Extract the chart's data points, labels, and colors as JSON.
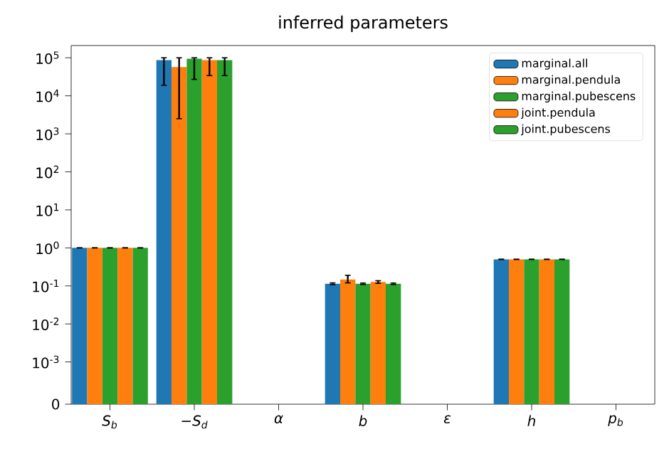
{
  "chart_data": {
    "type": "bar",
    "title": "inferred parameters",
    "categories": [
      "S$_{b}$",
      "−S$_{d}$",
      "α",
      "b",
      "ε",
      "h",
      "p$_{b}$"
    ],
    "series": [
      {
        "name": "marginal.all",
        "color": "#1f77b4",
        "values": [
          1.0,
          87000,
          0,
          0.114,
          0,
          0.5,
          0
        ],
        "errors": [
          0,
          [
            19000,
            100000
          ],
          null,
          0.006,
          null,
          0,
          null
        ]
      },
      {
        "name": "marginal.pendula",
        "color": "#ff7f0e",
        "values": [
          1.0,
          57000,
          0,
          0.147,
          0,
          0.5,
          0
        ],
        "errors": [
          0,
          [
            2500,
            100000
          ],
          null,
          [
            0.12,
            0.19
          ],
          null,
          0,
          null
        ]
      },
      {
        "name": "marginal.pubescens",
        "color": "#2ca02c",
        "values": [
          1.0,
          95000,
          0,
          0.114,
          0,
          0.5,
          0
        ],
        "errors": [
          0,
          [
            27000,
            100000
          ],
          null,
          0.005,
          null,
          0,
          null
        ]
      },
      {
        "name": "joint.pendula",
        "color": "#ff7f0e",
        "values": [
          1.0,
          87000,
          0,
          0.127,
          0,
          0.5,
          0
        ],
        "errors": [
          0,
          [
            34000,
            100000
          ],
          null,
          0.01,
          null,
          0,
          null
        ]
      },
      {
        "name": "joint.pubescens",
        "color": "#2ca02c",
        "values": [
          1.0,
          87000,
          0,
          0.114,
          0,
          0.5,
          0
        ],
        "errors": [
          0,
          [
            34000,
            100000
          ],
          null,
          0.005,
          null,
          0,
          null
        ]
      }
    ],
    "log": true,
    "ylim": [
      0,
      210000
    ],
    "yticks": [
      0,
      {
        "value": 0.001,
        "label": "10$^{-3}$"
      },
      {
        "value": 0.01,
        "label": "10$^{-2}$"
      },
      {
        "value": 0.1,
        "label": "10$^{-1}$"
      },
      {
        "value": 1,
        "label": "10$^{0}$"
      },
      {
        "value": 10,
        "label": "10$^{1}$"
      },
      {
        "value": 100,
        "label": "10$^{2}$"
      },
      {
        "value": 1000,
        "label": "10$^{3}$"
      },
      {
        "value": 10000,
        "label": "10$^{4}$"
      },
      {
        "value": 100000,
        "label": "10$^{5}$"
      }
    ],
    "legend": "top right"
  }
}
